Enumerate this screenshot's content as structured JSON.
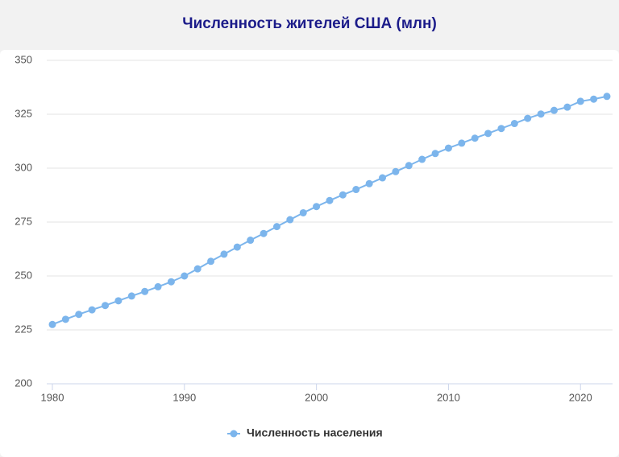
{
  "chart_data": {
    "type": "line",
    "title": "Численность жителей США (млн)",
    "x": [
      1980,
      1981,
      1982,
      1983,
      1984,
      1985,
      1986,
      1987,
      1988,
      1989,
      1990,
      1991,
      1992,
      1993,
      1994,
      1995,
      1996,
      1997,
      1998,
      1999,
      2000,
      2001,
      2002,
      2003,
      2004,
      2005,
      2006,
      2007,
      2008,
      2009,
      2010,
      2011,
      2012,
      2013,
      2014,
      2015,
      2016,
      2017,
      2018,
      2019,
      2020,
      2021,
      2022
    ],
    "series": [
      {
        "name": "Численность населения",
        "color": "#7cb5ec",
        "values": [
          227.5,
          229.9,
          232.2,
          234.3,
          236.3,
          238.5,
          240.7,
          242.8,
          245.0,
          247.3,
          250.0,
          253.3,
          256.8,
          260.1,
          263.4,
          266.6,
          269.7,
          272.9,
          276.1,
          279.3,
          282.2,
          285.0,
          287.6,
          290.1,
          292.8,
          295.5,
          298.4,
          301.2,
          304.1,
          306.8,
          309.3,
          311.6,
          313.9,
          316.1,
          318.4,
          320.7,
          323.1,
          325.1,
          326.8,
          328.3,
          331.0,
          332.0,
          333.3
        ]
      }
    ],
    "xlim": [
      1980,
      2022
    ],
    "xticks": [
      1980,
      1990,
      2000,
      2010,
      2020
    ],
    "ylim": [
      200,
      350
    ],
    "yticks": [
      200,
      225,
      250,
      275,
      300,
      325,
      350
    ],
    "grid": true
  }
}
